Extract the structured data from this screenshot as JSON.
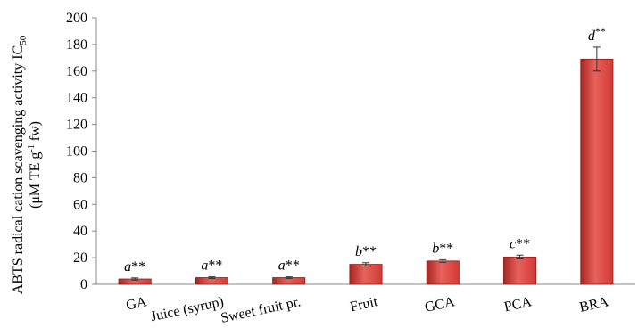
{
  "chart_data": {
    "type": "bar",
    "categories": [
      "GA",
      "Juice (syrup)",
      "Sweet fruit pr.",
      "Fruit",
      "GCA",
      "PCA",
      "BRA"
    ],
    "values": [
      4,
      5,
      5,
      15,
      17.5,
      20.5,
      169
    ],
    "errors": [
      0.8,
      0.6,
      0.6,
      1.2,
      1.0,
      1.4,
      9
    ],
    "significance": [
      {
        "letter": "a",
        "stars": "**"
      },
      {
        "letter": "a",
        "stars": "**"
      },
      {
        "letter": "a",
        "stars": "**"
      },
      {
        "letter": "b",
        "stars": "**"
      },
      {
        "letter": "b",
        "stars": "**"
      },
      {
        "letter": "c",
        "stars": "**"
      },
      {
        "letter": "d",
        "stars": "**"
      }
    ],
    "yticks": [
      0,
      20,
      40,
      60,
      80,
      100,
      120,
      140,
      160,
      180,
      200
    ],
    "ylim": [
      0,
      200
    ],
    "ylabel_line1": "ABTS radical cation scavenging activity IC",
    "ylabel_line1_sub": "50",
    "ylabel_line2_a": "(μM TE g",
    "ylabel_line2_sup": "-1",
    "ylabel_line2_b": " fw)",
    "xlabel": "",
    "title": "",
    "grid": false,
    "bar_color": "#d23a35",
    "bar_color_light": "#e8625c",
    "bar_color_dark": "#a82622"
  }
}
